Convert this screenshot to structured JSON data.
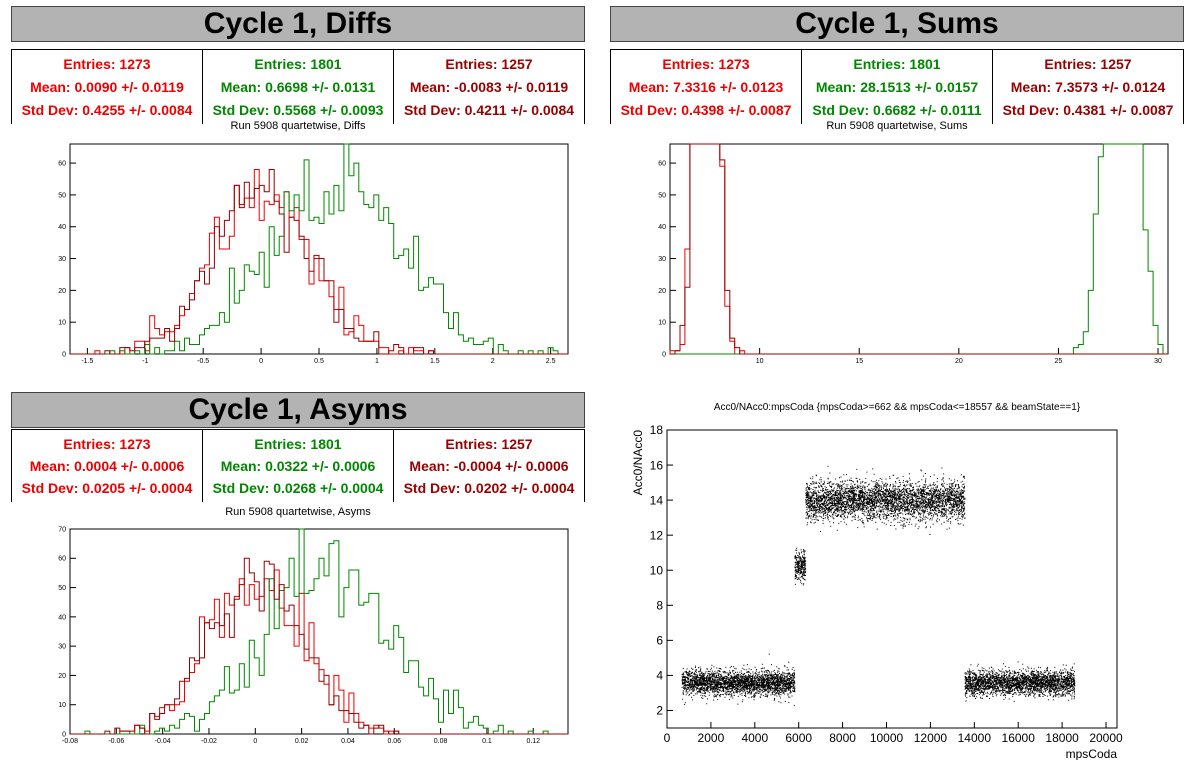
{
  "colors": {
    "c1": "#ee0000",
    "c2": "#008800",
    "c3": "#990000"
  },
  "panels": {
    "diffs": {
      "title": "Cycle 1, Diffs",
      "subtitle": "Run 5908 quartetwise, Diffs",
      "stats": [
        {
          "entries": "Entries: 1273",
          "mean": "Mean: 0.0090 +/- 0.0119",
          "std": "Std Dev: 0.4255 +/- 0.0084"
        },
        {
          "entries": "Entries: 1801",
          "mean": "Mean: 0.6698 +/- 0.0131",
          "std": "Std Dev: 0.5568 +/- 0.0093"
        },
        {
          "entries": "Entries: 1257",
          "mean": "Mean: -0.0083 +/- 0.0119",
          "std": "Std Dev: 0.4211 +/- 0.0084"
        }
      ]
    },
    "sums": {
      "title": "Cycle 1, Sums",
      "subtitle": "Run 5908 quartetwise, Sums",
      "stats": [
        {
          "entries": "Entries: 1273",
          "mean": "Mean: 7.3316 +/- 0.0123",
          "std": "Std Dev: 0.4398 +/- 0.0087"
        },
        {
          "entries": "Entries: 1801",
          "mean": "Mean: 28.1513 +/- 0.0157",
          "std": "Std Dev: 0.6682 +/- 0.0111"
        },
        {
          "entries": "Entries: 1257",
          "mean": "Mean: 7.3573 +/- 0.0124",
          "std": "Std Dev: 0.4381 +/- 0.0087"
        }
      ]
    },
    "asyms": {
      "title": "Cycle 1, Asyms",
      "subtitle": "Run 5908 quartetwise, Asyms",
      "stats": [
        {
          "entries": "Entries: 1273",
          "mean": "Mean: 0.0004 +/- 0.0006",
          "std": "Std Dev: 0.0205 +/- 0.0004"
        },
        {
          "entries": "Entries: 1801",
          "mean": "Mean: 0.0322 +/- 0.0006",
          "std": "Std Dev: 0.0268 +/- 0.0004"
        },
        {
          "entries": "Entries: 1257",
          "mean": "Mean: -0.0004 +/- 0.0006",
          "std": "Std Dev: 0.0202 +/- 0.0004"
        }
      ]
    },
    "scatter": {
      "title": "Acc0/NAcc0:mpsCoda {mpsCoda>=662 && mpsCoda<=18557 && beamState==1}"
    }
  },
  "chart_data": [
    {
      "type": "histogram",
      "title": "Run 5908 quartetwise, Diffs",
      "xlim": [
        -1.65,
        2.65
      ],
      "ylim": [
        0,
        66
      ],
      "xticks": [
        -1.5,
        -1,
        -0.5,
        0,
        0.5,
        1,
        1.5,
        2,
        2.5
      ],
      "xtick_labels": [
        "-1.5",
        "-1",
        "-0.5",
        "0",
        "0.5",
        "1",
        "1.5",
        "2",
        "2.5"
      ],
      "yticks": [
        0,
        10,
        20,
        30,
        40,
        50,
        60
      ],
      "ytick_labels": [
        "0",
        "10",
        "20",
        "30",
        "40",
        "50",
        "60"
      ],
      "series": [
        {
          "entries": 1273,
          "mean": 0.009,
          "std": 0.4255,
          "color": "#ee0000"
        },
        {
          "entries": 1801,
          "mean": 0.6698,
          "std": 0.5568,
          "color": "#008800"
        },
        {
          "entries": 1257,
          "mean": -0.0083,
          "std": 0.4211,
          "color": "#990000"
        }
      ]
    },
    {
      "type": "histogram",
      "title": "Run 5908 quartetwise, Sums",
      "xlim": [
        5.5,
        30.5
      ],
      "ylim": [
        0,
        66
      ],
      "xticks": [
        10,
        15,
        20,
        25,
        30
      ],
      "xtick_labels": [
        "10",
        "15",
        "20",
        "25",
        "30"
      ],
      "yticks": [
        0,
        10,
        20,
        30,
        40,
        50,
        60
      ],
      "ytick_labels": [
        "0",
        "10",
        "20",
        "30",
        "40",
        "50",
        "60"
      ],
      "series": [
        {
          "entries": 1273,
          "mean": 7.3316,
          "std": 0.4398,
          "color": "#ee0000"
        },
        {
          "entries": 1801,
          "mean": 28.1513,
          "std": 0.6682,
          "color": "#008800"
        },
        {
          "entries": 1257,
          "mean": 7.3573,
          "std": 0.4381,
          "color": "#990000"
        }
      ]
    },
    {
      "type": "histogram",
      "title": "Run 5908 quartetwise, Asyms",
      "xlim": [
        -0.08,
        0.135
      ],
      "ylim": [
        0,
        70
      ],
      "xticks": [
        -0.08,
        -0.06,
        -0.04,
        -0.02,
        0,
        0.02,
        0.04,
        0.06,
        0.08,
        0.1,
        0.12
      ],
      "xtick_labels": [
        "-0.08",
        "-0.06",
        "-0.04",
        "-0.02",
        "0",
        "0.02",
        "0.04",
        "0.06",
        "0.08",
        "0.1",
        "0.12"
      ],
      "yticks": [
        0,
        10,
        20,
        30,
        40,
        50,
        60,
        70
      ],
      "ytick_labels": [
        "0",
        "10",
        "20",
        "30",
        "40",
        "50",
        "60",
        "70"
      ],
      "series": [
        {
          "entries": 1273,
          "mean": 0.0004,
          "std": 0.0205,
          "color": "#ee0000"
        },
        {
          "entries": 1801,
          "mean": 0.0322,
          "std": 0.0268,
          "color": "#008800"
        },
        {
          "entries": 1257,
          "mean": -0.0004,
          "std": 0.0202,
          "color": "#990000"
        }
      ]
    },
    {
      "type": "scatter",
      "title": "Acc0/NAcc0:mpsCoda {mpsCoda>=662 && mpsCoda<=18557 && beamState==1}",
      "xlabel": "mpsCoda",
      "ylabel": "Acc0/NAcc0",
      "xlim": [
        0,
        20500
      ],
      "ylim": [
        1,
        18
      ],
      "xticks": [
        0,
        2000,
        4000,
        6000,
        8000,
        10000,
        12000,
        14000,
        16000,
        18000,
        20000
      ],
      "xtick_labels": [
        "0",
        "2000",
        "4000",
        "6000",
        "8000",
        "10000",
        "12000",
        "14000",
        "16000",
        "18000",
        "20000"
      ],
      "yticks": [
        2,
        4,
        6,
        8,
        10,
        12,
        14,
        16,
        18
      ],
      "ytick_labels": [
        "2",
        "4",
        "6",
        "8",
        "10",
        "12",
        "14",
        "16",
        "18"
      ],
      "clusters": [
        {
          "x_range": [
            662,
            5800
          ],
          "y_mean": 3.6,
          "y_spread": 0.35
        },
        {
          "x_range": [
            5800,
            6300
          ],
          "y_mean": 10.3,
          "y_spread": 0.4
        },
        {
          "x_range": [
            6300,
            13550
          ],
          "y_mean": 14.0,
          "y_spread": 0.55
        },
        {
          "x_range": [
            13550,
            18557
          ],
          "y_mean": 3.6,
          "y_spread": 0.35
        }
      ]
    }
  ]
}
